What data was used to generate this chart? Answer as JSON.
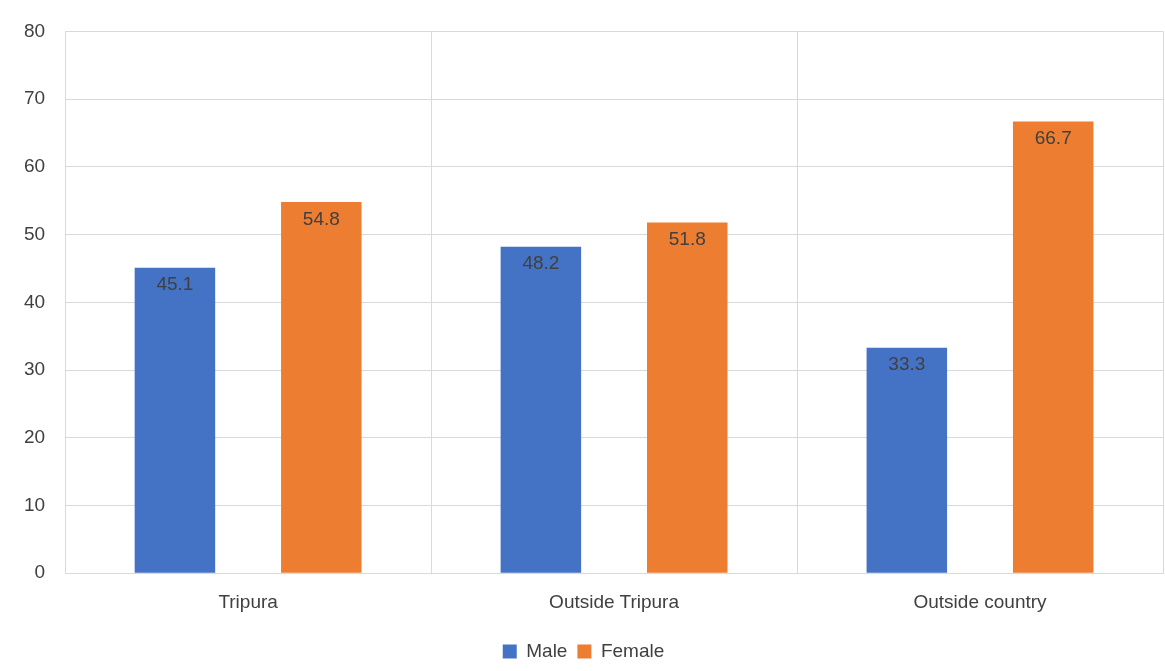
{
  "chart_data": {
    "type": "bar",
    "categories": [
      "Tripura",
      "Outside Tripura",
      "Outside country"
    ],
    "series": [
      {
        "name": "Male",
        "color": "#4472c4",
        "values": [
          45.1,
          48.2,
          33.3
        ]
      },
      {
        "name": "Female",
        "color": "#ed7d31",
        "values": [
          54.8,
          51.8,
          66.7
        ]
      }
    ],
    "ylim": [
      0,
      80
    ],
    "yticks": [
      0,
      10,
      20,
      30,
      40,
      50,
      60,
      70,
      80
    ],
    "grid": true,
    "legend": "bottom",
    "data_labels": true
  }
}
